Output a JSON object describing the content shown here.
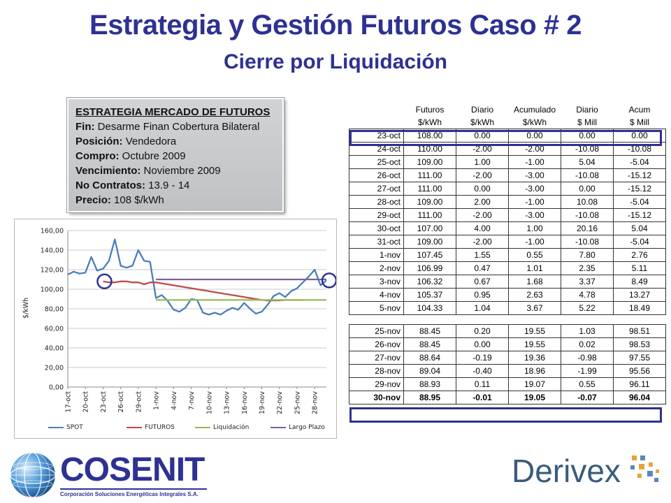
{
  "title": "Estrategia y Gestión Futuros Caso # 2",
  "subtitle": "Cierre por Liquidación",
  "strategy": {
    "heading": "ESTRATEGIA MERCADO DE FUTUROS",
    "rows": [
      {
        "label": "Fin:",
        "value": "Desarme Finan Cobertura Bilateral"
      },
      {
        "label": "Posición:",
        "value": "Vendedora"
      },
      {
        "label": "Compro:",
        "value": "Octubre 2009"
      },
      {
        "label": "Vencimiento:",
        "value": "Noviembre 2009"
      },
      {
        "label": "No Contratos:",
        "value": "13.9 - 14"
      },
      {
        "label": "Precio:",
        "value": "108 $/kWh"
      }
    ]
  },
  "table": {
    "header_row1": [
      "",
      "Futuros",
      "Díario",
      "Acumulado",
      "Diario",
      "Acum"
    ],
    "header_row2": [
      "",
      "$/kWh",
      "$/kWh",
      "$/kWh",
      "$ Mill",
      "$ Mill"
    ],
    "rows_top": [
      [
        "23-oct",
        "108.00",
        "0.00",
        "0.00",
        "0.00",
        "0.00"
      ],
      [
        "24-oct",
        "110.00",
        "-2.00",
        "-2.00",
        "-10.08",
        "-10.08"
      ],
      [
        "25-oct",
        "109.00",
        "1.00",
        "-1.00",
        "5.04",
        "-5.04"
      ],
      [
        "26-oct",
        "111.00",
        "-2.00",
        "-3.00",
        "-10.08",
        "-15.12"
      ],
      [
        "27-oct",
        "111.00",
        "0.00",
        "-3.00",
        "0.00",
        "-15.12"
      ],
      [
        "28-oct",
        "109.00",
        "2.00",
        "-1.00",
        "10.08",
        "-5.04"
      ],
      [
        "29-oct",
        "111.00",
        "-2.00",
        "-3.00",
        "-10.08",
        "-15.12"
      ],
      [
        "30-oct",
        "107.00",
        "4.00",
        "1.00",
        "20.16",
        "5.04"
      ],
      [
        "31-oct",
        "109.00",
        "-2.00",
        "-1.00",
        "-10.08",
        "-5.04"
      ],
      [
        "1-nov",
        "107.45",
        "1.55",
        "0.55",
        "7.80",
        "2.76"
      ],
      [
        "2-nov",
        "106.99",
        "0.47",
        "1.01",
        "2.35",
        "5.11"
      ],
      [
        "3-nov",
        "106.32",
        "0.67",
        "1.68",
        "3.37",
        "8.49"
      ],
      [
        "4-nov",
        "105.37",
        "0.95",
        "2.63",
        "4.78",
        "13.27"
      ],
      [
        "5-nov",
        "104.33",
        "1.04",
        "3.67",
        "5.22",
        "18.49"
      ]
    ],
    "rows_bottom": [
      [
        "25-nov",
        "88.45",
        "0.20",
        "19.55",
        "1.03",
        "98.51"
      ],
      [
        "26-nov",
        "88.45",
        "0.00",
        "19.55",
        "0.02",
        "98.53"
      ],
      [
        "27-nov",
        "88.64",
        "-0.19",
        "19.36",
        "-0.98",
        "97.55"
      ],
      [
        "28-nov",
        "89.04",
        "-0.40",
        "18.96",
        "-1.99",
        "95.56"
      ],
      [
        "29-nov",
        "88.93",
        "0.11",
        "19.07",
        "0.55",
        "96.11"
      ],
      [
        "30-nov",
        "88.95",
        "-0.01",
        "19.05",
        "-0.07",
        "96.04"
      ]
    ]
  },
  "chart_data": {
    "type": "line",
    "ylabel": "$/kWh",
    "ylim": [
      0,
      160
    ],
    "yticks": [
      "0,00",
      "20,00",
      "40,00",
      "60,00",
      "80,00",
      "100,00",
      "120,00",
      "140,00",
      "160,00"
    ],
    "xticks": [
      "17-oct",
      "20-oct",
      "23-oct",
      "26-oct",
      "29-oct",
      "1-nov",
      "4-nov",
      "7-nov",
      "10-nov",
      "13-nov",
      "16-nov",
      "19-nov",
      "22-nov",
      "25-nov",
      "28-nov"
    ],
    "grid": true,
    "legend_position": "bottom",
    "series": [
      {
        "name": "SPOT",
        "color": "#4a7ebb",
        "start": 0,
        "values": [
          115,
          118,
          116,
          117,
          133,
          119,
          121,
          129,
          151,
          124,
          122,
          124,
          140,
          129,
          128,
          91,
          94,
          88,
          79,
          77,
          81,
          90,
          89,
          76,
          74,
          76,
          74,
          78,
          81,
          79,
          86,
          80,
          75,
          77,
          84,
          93,
          96,
          92,
          98,
          101,
          107,
          113,
          120,
          104,
          109
        ]
      },
      {
        "name": "FUTUROS",
        "color": "#be4b48",
        "start": 6,
        "values": [
          108,
          107,
          107,
          108,
          108,
          107,
          107,
          105,
          107,
          107,
          106,
          105,
          104,
          103,
          102,
          101,
          100,
          99,
          98,
          97,
          96,
          95,
          94,
          93,
          92,
          91,
          90,
          89,
          88.5,
          88.5,
          88.6,
          89,
          88.9,
          88.95,
          88.95
        ]
      },
      {
        "name": "Liquidación",
        "color": "#98b954",
        "start": 15,
        "values": [
          89,
          89,
          89,
          89,
          89,
          89,
          89,
          89,
          89,
          89,
          89,
          89,
          89,
          89,
          89,
          89,
          89,
          89,
          89,
          89,
          89,
          89,
          89,
          89,
          89,
          89,
          89,
          89,
          89,
          89
        ]
      },
      {
        "name": "Largo Plazo",
        "color": "#7d60a0",
        "start": 15,
        "values": [
          110,
          110,
          110,
          110,
          110,
          110,
          110,
          110,
          110,
          110,
          110,
          110,
          110,
          110,
          110,
          110,
          110,
          110,
          110,
          110,
          110,
          110,
          110,
          110,
          110,
          110,
          110,
          110,
          110,
          110
        ]
      }
    ],
    "highlight_circles": {
      "color": "#2e3192",
      "points": [
        6,
        44
      ]
    }
  },
  "logos": {
    "cosenit_name": "COSENIT",
    "cosenit_tagline": "Corporación Soluciones Energéticas Integrales S.A.",
    "derivex_name": "Derivex"
  },
  "colors": {
    "title": "#2e3192",
    "highlight": "#2e3192"
  }
}
